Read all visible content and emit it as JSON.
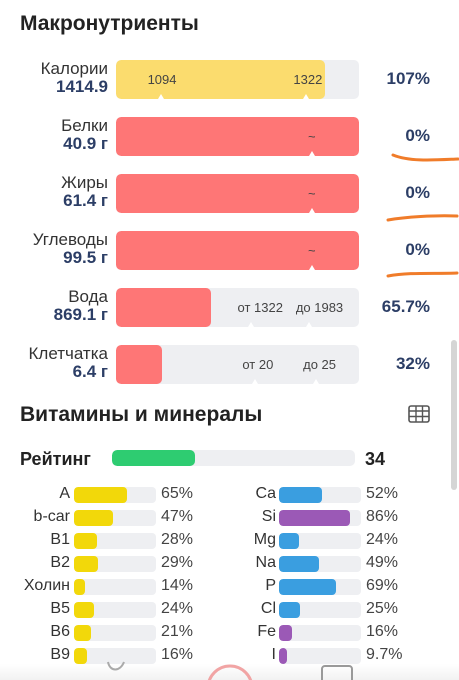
{
  "macros": {
    "title": "Макронутриенты",
    "rows": [
      {
        "name": "Калории",
        "value": "1414.9",
        "pct": "107%",
        "fill": 0.86,
        "color": "#fbdc6e",
        "marks": [
          {
            "label": "1094",
            "pos": 0.13
          },
          {
            "label": "1322",
            "pos": 0.73
          }
        ]
      },
      {
        "name": "Белки",
        "value": "40.9 г",
        "pct": "0%",
        "fill": 1.0,
        "color": "#fe7676",
        "marks": [
          {
            "label": "~",
            "pos": 0.79
          }
        ]
      },
      {
        "name": "Жиры",
        "value": "61.4 г",
        "pct": "0%",
        "fill": 1.0,
        "color": "#fe7676",
        "marks": [
          {
            "label": "~",
            "pos": 0.79
          }
        ]
      },
      {
        "name": "Углеводы",
        "value": "99.5 г",
        "pct": "0%",
        "fill": 1.0,
        "color": "#fe7676",
        "marks": [
          {
            "label": "~",
            "pos": 0.79
          }
        ]
      },
      {
        "name": "Вода",
        "value": "869.1 г",
        "pct": "65.7%",
        "fill": 0.39,
        "color": "#fe7676",
        "marks": [
          {
            "label": "от 1322",
            "pos": 0.5
          },
          {
            "label": "до 1983",
            "pos": 0.74
          }
        ]
      },
      {
        "name": "Клетчатка",
        "value": "6.4 г",
        "pct": "32%",
        "fill": 0.19,
        "color": "#fe7676",
        "marks": [
          {
            "label": "от 20",
            "pos": 0.52
          },
          {
            "label": "до 25",
            "pos": 0.77
          }
        ]
      }
    ]
  },
  "vitamins": {
    "title": "Витамины и минералы",
    "grid_icon": "grid-table-icon",
    "rating_label": "Рейтинг",
    "rating_value": "34",
    "rating_fill": 0.34,
    "left": [
      {
        "name": "A",
        "pct": "65%",
        "fill": 0.65,
        "color": "#f2d80a"
      },
      {
        "name": "b-car",
        "pct": "47%",
        "fill": 0.47,
        "color": "#f2d80a"
      },
      {
        "name": "B1",
        "pct": "28%",
        "fill": 0.28,
        "color": "#f2d80a"
      },
      {
        "name": "B2",
        "pct": "29%",
        "fill": 0.29,
        "color": "#f2d80a"
      },
      {
        "name": "Холин",
        "pct": "14%",
        "fill": 0.14,
        "color": "#f2d80a"
      },
      {
        "name": "B5",
        "pct": "24%",
        "fill": 0.24,
        "color": "#f2d80a"
      },
      {
        "name": "B6",
        "pct": "21%",
        "fill": 0.21,
        "color": "#f2d80a"
      },
      {
        "name": "B9",
        "pct": "16%",
        "fill": 0.16,
        "color": "#f2d80a"
      }
    ],
    "right": [
      {
        "name": "Ca",
        "pct": "52%",
        "fill": 0.52,
        "color": "#3a9ee0"
      },
      {
        "name": "Si",
        "pct": "86%",
        "fill": 0.86,
        "color": "#9b59b6"
      },
      {
        "name": "Mg",
        "pct": "24%",
        "fill": 0.24,
        "color": "#3a9ee0"
      },
      {
        "name": "Na",
        "pct": "49%",
        "fill": 0.49,
        "color": "#3a9ee0"
      },
      {
        "name": "P",
        "pct": "69%",
        "fill": 0.69,
        "color": "#3a9ee0"
      },
      {
        "name": "Cl",
        "pct": "25%",
        "fill": 0.25,
        "color": "#3a9ee0"
      },
      {
        "name": "Fe",
        "pct": "16%",
        "fill": 0.16,
        "color": "#9b59b6"
      },
      {
        "name": "I",
        "pct": "9.7%",
        "fill": 0.097,
        "color": "#9b59b6"
      }
    ]
  },
  "colors": {
    "empty": "#eeeff2",
    "accent_text": "#2c3e66",
    "rating": "#2ecc71",
    "annotation": "#f07c2a"
  }
}
